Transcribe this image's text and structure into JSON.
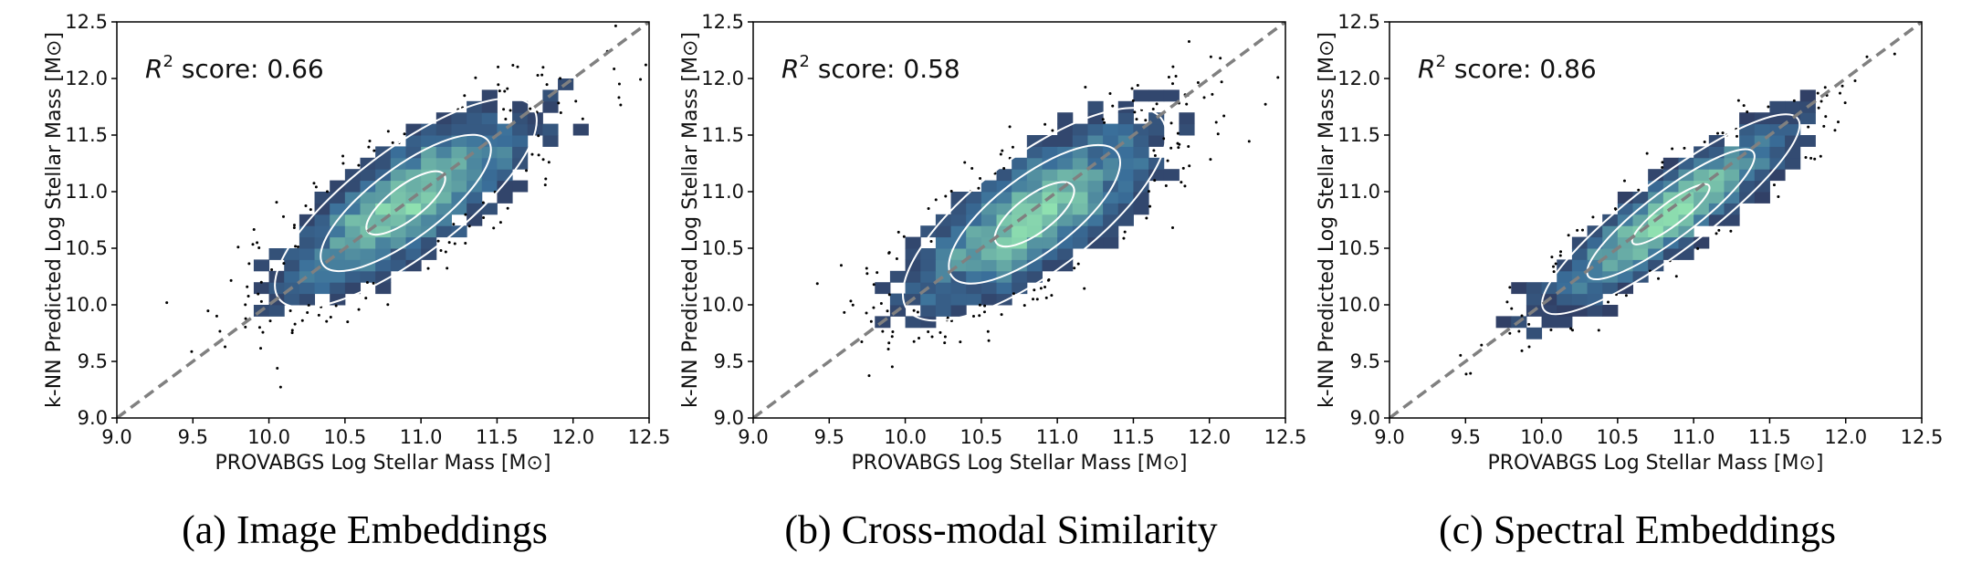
{
  "colors": {
    "diagonal": "#808080",
    "contour": "#ffffff",
    "scatter": "#000000",
    "cmap_low": "#2a1b3d",
    "cmap_mid": "#3a6f9a",
    "cmap_high": "#8fe0b0"
  },
  "chart_data": [
    {
      "type": "scatter",
      "caption": "(a) Image Embeddings",
      "annotation_prefix": "R",
      "annotation_sup": "2",
      "annotation_text": " score: 0.66",
      "r2_score": 0.66,
      "xlabel": "PROVABGS Log Stellar Mass [M⊙]",
      "ylabel": "k-NN Predicted Log Stellar Mass [M⊙]",
      "xlim": [
        9.0,
        12.5
      ],
      "ylim": [
        9.0,
        12.5
      ],
      "xticks": [
        "9.0",
        "9.5",
        "10.0",
        "10.5",
        "11.0",
        "11.5",
        "12.0",
        "12.5"
      ],
      "yticks": [
        "9.0",
        "9.5",
        "10.0",
        "10.5",
        "11.0",
        "11.5",
        "12.0",
        "12.5"
      ],
      "reference_line": "y = x (dashed)",
      "density": "2D histogram with density contours",
      "center": [
        10.9,
        10.9
      ],
      "spread_x": 0.55,
      "spread_y": 0.44
    },
    {
      "type": "scatter",
      "caption": "(b) Cross-modal Similarity",
      "annotation_prefix": "R",
      "annotation_sup": "2",
      "annotation_text": " score: 0.58",
      "r2_score": 0.58,
      "xlabel": "PROVABGS Log Stellar Mass [M⊙]",
      "ylabel": "k-NN Predicted Log Stellar Mass [M⊙]",
      "xlim": [
        9.0,
        12.5
      ],
      "ylim": [
        9.0,
        12.5
      ],
      "xticks": [
        "9.0",
        "9.5",
        "10.0",
        "10.5",
        "11.0",
        "11.5",
        "12.0",
        "12.5"
      ],
      "yticks": [
        "9.0",
        "9.5",
        "10.0",
        "10.5",
        "11.0",
        "11.5",
        "12.0",
        "12.5"
      ],
      "reference_line": "y = x (dashed)",
      "density": "2D histogram with density contours",
      "center": [
        10.85,
        10.8
      ],
      "spread_x": 0.55,
      "spread_y": 0.48
    },
    {
      "type": "scatter",
      "caption": "(c) Spectral Embeddings",
      "annotation_prefix": "R",
      "annotation_sup": "2",
      "annotation_text": " score: 0.86",
      "r2_score": 0.86,
      "xlabel": "PROVABGS Log Stellar Mass [M⊙]",
      "ylabel": "k-NN Predicted Log Stellar Mass [M⊙]",
      "xlim": [
        9.0,
        12.5
      ],
      "ylim": [
        9.0,
        12.5
      ],
      "xticks": [
        "9.0",
        "9.5",
        "10.0",
        "10.5",
        "11.0",
        "11.5",
        "12.0",
        "12.5"
      ],
      "yticks": [
        "9.0",
        "9.5",
        "10.0",
        "10.5",
        "11.0",
        "11.5",
        "12.0",
        "12.5"
      ],
      "reference_line": "y = x (dashed)",
      "density": "2D histogram with density contours",
      "center": [
        10.85,
        10.8
      ],
      "spread_x": 0.55,
      "spread_y": 0.3
    }
  ]
}
